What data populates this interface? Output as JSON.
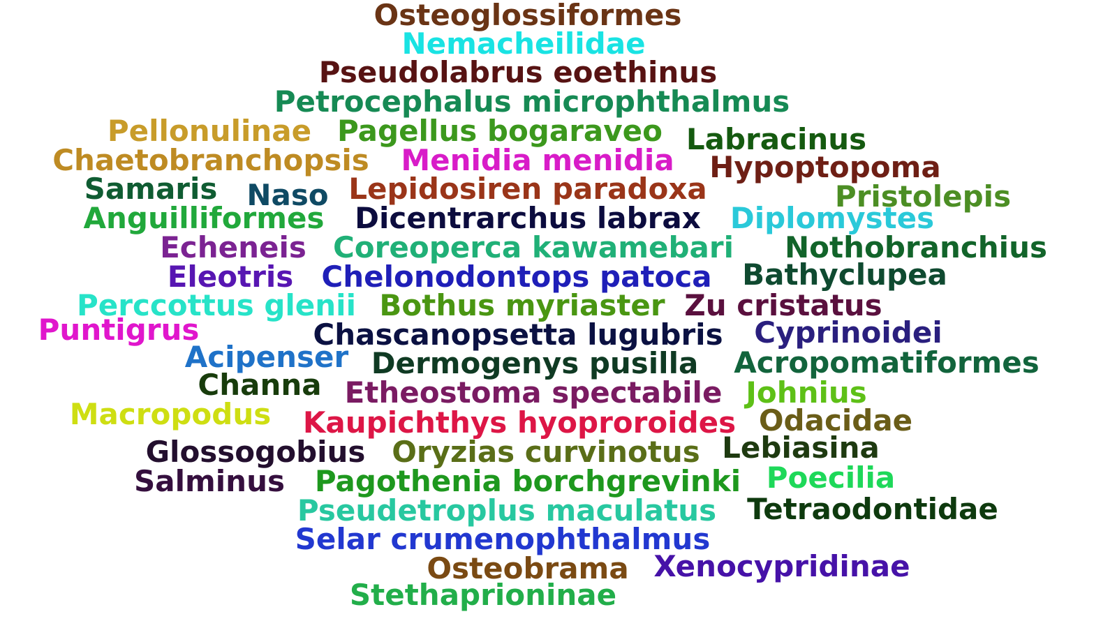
{
  "words": [
    {
      "text": "Osteoglossiformes",
      "color": "#6a3415"
    },
    {
      "text": "Nemacheilidae",
      "color": "#19e3e3"
    },
    {
      "text": "Pseudolabrus eoethinus",
      "color": "#571313"
    },
    {
      "text": "Petrocephalus microphthalmus",
      "color": "#168a54"
    },
    {
      "text": "Pellonulinae",
      "color": "#c89c2a"
    },
    {
      "text": "Pagellus bogaraveo",
      "color": "#3c981d"
    },
    {
      "text": "Labracinus",
      "color": "#155a10"
    },
    {
      "text": "Chaetobranchopsis",
      "color": "#be8b23"
    },
    {
      "text": "Menidia menidia",
      "color": "#d81cc8"
    },
    {
      "text": "Hypoptopoma",
      "color": "#6e1f15"
    },
    {
      "text": "Samaris",
      "color": "#0f5c32"
    },
    {
      "text": "Naso",
      "color": "#0f4a64"
    },
    {
      "text": "Lepidosiren paradoxa",
      "color": "#9a3519"
    },
    {
      "text": "Pristolepis",
      "color": "#4c8e24"
    },
    {
      "text": "Anguilliformes",
      "color": "#21a83b"
    },
    {
      "text": "Dicentrarchus labrax",
      "color": "#0c0c3e"
    },
    {
      "text": "Diplomystes",
      "color": "#2ac9d9"
    },
    {
      "text": "Echeneis",
      "color": "#7b2392"
    },
    {
      "text": "Coreoperca kawamebari",
      "color": "#20b077"
    },
    {
      "text": "Nothobranchius",
      "color": "#12642a"
    },
    {
      "text": "Eleotris",
      "color": "#5716b2"
    },
    {
      "text": "Chelonodontops patoca",
      "color": "#1f1fb8"
    },
    {
      "text": "Bathyclupea",
      "color": "#0f4a30"
    },
    {
      "text": "Perccottus glenii",
      "color": "#27e3c8"
    },
    {
      "text": "Bothus myriaster",
      "color": "#4a9612"
    },
    {
      "text": "Zu cristatus",
      "color": "#5a103e"
    },
    {
      "text": "Puntigrus",
      "color": "#e016cc"
    },
    {
      "text": "Chascanopsetta lugubris",
      "color": "#0b1142"
    },
    {
      "text": "Cyprinoidei",
      "color": "#2a1f7e"
    },
    {
      "text": "Acipenser",
      "color": "#1f72c8"
    },
    {
      "text": "Dermogenys pusilla",
      "color": "#0f3a23"
    },
    {
      "text": "Acropomatiformes",
      "color": "#12643c"
    },
    {
      "text": "Channa",
      "color": "#183c0c"
    },
    {
      "text": "Etheostoma spectabile",
      "color": "#7a1b62"
    },
    {
      "text": "Johnius",
      "color": "#5ec017"
    },
    {
      "text": "Macropodus",
      "color": "#cede12"
    },
    {
      "text": "Kaupichthys hyoproroides",
      "color": "#dd1646"
    },
    {
      "text": "Odacidae",
      "color": "#6a5d18"
    },
    {
      "text": "Glossogobius",
      "color": "#230f2e"
    },
    {
      "text": "Oryzias curvinotus",
      "color": "#5a6e18"
    },
    {
      "text": "Lebiasina",
      "color": "#1e3a10"
    },
    {
      "text": "Salminus",
      "color": "#350f3e"
    },
    {
      "text": "Pagothenia borchgrevinki",
      "color": "#1e981e"
    },
    {
      "text": "Poecilia",
      "color": "#1ed859"
    },
    {
      "text": "Pseudetroplus maculatus",
      "color": "#28c8a0"
    },
    {
      "text": "Tetraodontidae",
      "color": "#0e3a0e"
    },
    {
      "text": "Selar crumenophthalmus",
      "color": "#2238d0"
    },
    {
      "text": "Osteobrama",
      "color": "#7a4a13"
    },
    {
      "text": "Xenocypridinae",
      "color": "#4612a8"
    },
    {
      "text": "Stethaprioninae",
      "color": "#22ae4a"
    }
  ]
}
